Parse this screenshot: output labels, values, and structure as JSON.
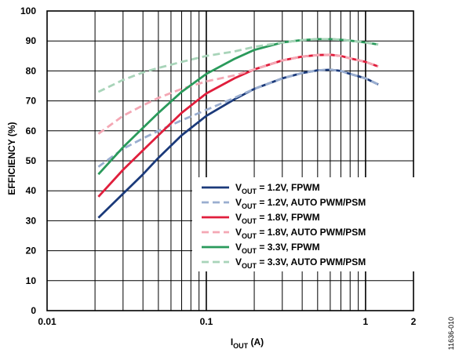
{
  "chart_data": {
    "type": "line",
    "xlabel": {
      "main": "I",
      "sub": "OUT",
      "unit": " (A)"
    },
    "ylabel": "EFFICIENCY (%)",
    "x_scale": "log",
    "xlim": [
      0.01,
      2
    ],
    "ylim": [
      0,
      100
    ],
    "x_tick_labels": [
      {
        "value": 0.01,
        "label": "0.01"
      },
      {
        "value": 0.1,
        "label": "0.1"
      },
      {
        "value": 1,
        "label": "1"
      },
      {
        "value": 2,
        "label": "2"
      }
    ],
    "y_ticks": [
      0,
      10,
      20,
      30,
      40,
      50,
      60,
      70,
      80,
      90,
      100
    ],
    "grid": true,
    "legend_position": "bottom-right",
    "figure_id": "11636-010",
    "series": [
      {
        "name": "V_OUT = 1.2V, FPWM",
        "legend": {
          "main": "V",
          "sub": "OUT",
          "rest": " = 1.2V, FPWM"
        },
        "color": "#1b3a7a",
        "dash": false,
        "x": [
          0.021,
          0.03,
          0.04,
          0.05,
          0.07,
          0.1,
          0.15,
          0.2,
          0.3,
          0.4,
          0.5,
          0.6,
          0.7,
          0.8,
          1.0,
          1.2
        ],
        "y": [
          31,
          39,
          45.5,
          51,
          58.5,
          65,
          70.5,
          74,
          77.5,
          79.3,
          80.2,
          80.4,
          80,
          79,
          77.5,
          75.5
        ]
      },
      {
        "name": "V_OUT = 1.2V, AUTO PWM/PSM",
        "legend": {
          "main": "V",
          "sub": "OUT",
          "rest": " = 1.2V, AUTO PWM/PSM"
        },
        "color": "#9aaed0",
        "dash": true,
        "x": [
          0.021,
          0.03,
          0.04,
          0.05,
          0.07,
          0.1,
          0.15,
          0.2,
          0.3,
          0.4,
          0.5,
          0.6,
          0.7,
          0.8,
          1.0,
          1.2
        ],
        "y": [
          48,
          54,
          57.5,
          60,
          63.5,
          67,
          71,
          74,
          77.5,
          79.3,
          80.2,
          80.4,
          80,
          79,
          77.5,
          75.5
        ]
      },
      {
        "name": "V_OUT = 1.8V, FPWM",
        "legend": {
          "main": "V",
          "sub": "OUT",
          "rest": " = 1.8V, FPWM"
        },
        "color": "#e01e3c",
        "dash": false,
        "x": [
          0.021,
          0.03,
          0.04,
          0.05,
          0.07,
          0.1,
          0.15,
          0.2,
          0.3,
          0.4,
          0.5,
          0.6,
          0.7,
          0.8,
          1.0,
          1.2
        ],
        "y": [
          38,
          47,
          53.5,
          58.5,
          66,
          72.5,
          77.5,
          80.5,
          83.5,
          84.8,
          85.3,
          85.4,
          85,
          84.2,
          83,
          81.5
        ]
      },
      {
        "name": "V_OUT = 1.8V, AUTO PWM/PSM",
        "legend": {
          "main": "V",
          "sub": "OUT",
          "rest": " = 1.8V, AUTO PWM/PSM"
        },
        "color": "#f4a7b4",
        "dash": true,
        "x": [
          0.021,
          0.03,
          0.04,
          0.05,
          0.07,
          0.1,
          0.15,
          0.2,
          0.3,
          0.4,
          0.5,
          0.6,
          0.7,
          0.8,
          1.0,
          1.2
        ],
        "y": [
          59,
          65,
          68.5,
          71,
          74,
          76.5,
          78.5,
          80.5,
          83.5,
          84.8,
          85.3,
          85.4,
          85,
          84.2,
          83,
          81.5
        ]
      },
      {
        "name": "V_OUT = 3.3V, FPWM",
        "legend": {
          "main": "V",
          "sub": "OUT",
          "rest": " = 3.3V, FPWM"
        },
        "color": "#2a9a5b",
        "dash": false,
        "x": [
          0.021,
          0.03,
          0.04,
          0.05,
          0.07,
          0.1,
          0.15,
          0.2,
          0.3,
          0.4,
          0.5,
          0.6,
          0.7,
          0.8,
          1.0,
          1.2
        ],
        "y": [
          45.5,
          54.5,
          61,
          66,
          73,
          79,
          84,
          87,
          89.5,
          90.3,
          90.6,
          90.6,
          90.4,
          90.1,
          89.5,
          88.8
        ]
      },
      {
        "name": "V_OUT = 3.3V, AUTO PWM/PSM",
        "legend": {
          "main": "V",
          "sub": "OUT",
          "rest": " = 3.3V, AUTO PWM/PSM"
        },
        "color": "#a8d4b9",
        "dash": true,
        "x": [
          0.021,
          0.03,
          0.04,
          0.05,
          0.07,
          0.1,
          0.15,
          0.2,
          0.3,
          0.4,
          0.5,
          0.6,
          0.7,
          0.8,
          1.0,
          1.2
        ],
        "y": [
          73,
          77,
          79.5,
          81,
          83,
          85,
          86.5,
          88,
          89.5,
          90.3,
          90.6,
          90.6,
          90.4,
          90.1,
          89.5,
          88.8
        ]
      }
    ]
  }
}
